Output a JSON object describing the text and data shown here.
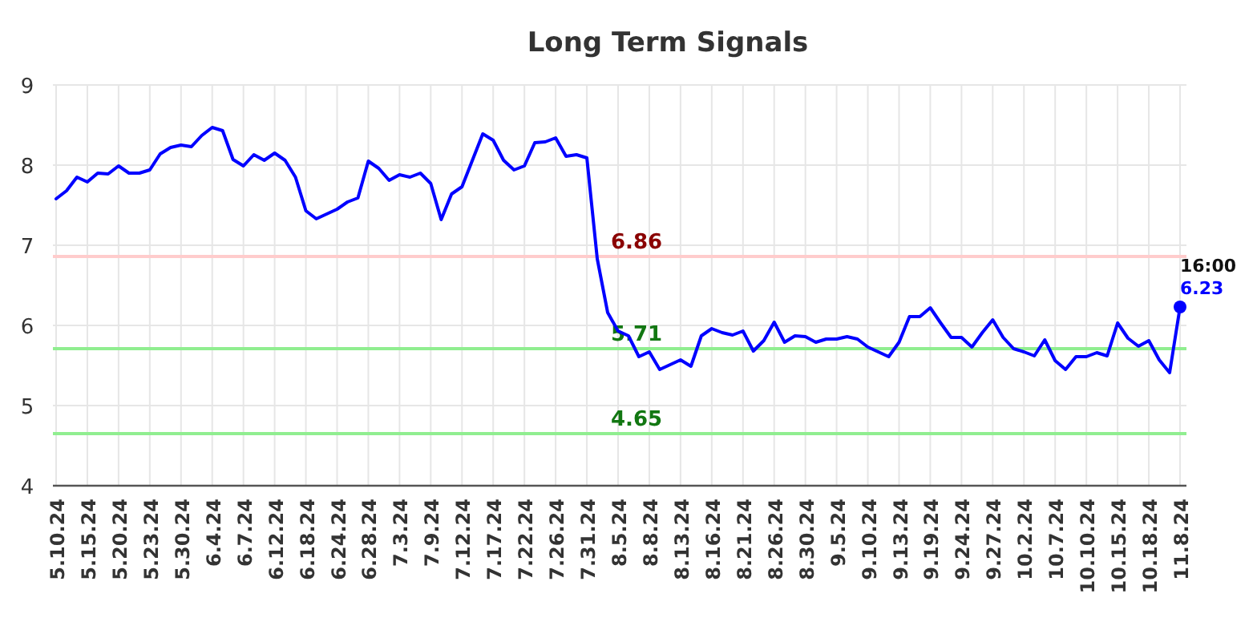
{
  "chart_data": {
    "type": "line",
    "title": "Long Term Signals",
    "categories": [
      "5.10.24",
      null,
      null,
      "5.15.24",
      null,
      null,
      "5.20.24",
      null,
      null,
      "5.23.24",
      null,
      null,
      "5.30.24",
      null,
      null,
      "6.4.24",
      null,
      null,
      "6.7.24",
      null,
      null,
      "6.12.24",
      null,
      null,
      "6.18.24",
      null,
      null,
      "6.24.24",
      null,
      null,
      "6.28.24",
      null,
      null,
      "7.3.24",
      null,
      null,
      "7.9.24",
      null,
      null,
      "7.12.24",
      null,
      null,
      "7.17.24",
      null,
      null,
      "7.22.24",
      null,
      null,
      "7.26.24",
      null,
      null,
      "7.31.24",
      null,
      null,
      "8.5.24",
      null,
      null,
      "8.8.24",
      null,
      null,
      "8.13.24",
      null,
      null,
      "8.16.24",
      null,
      null,
      "8.21.24",
      null,
      null,
      "8.26.24",
      null,
      null,
      "8.30.24",
      null,
      null,
      "9.5.24",
      null,
      null,
      "9.10.24",
      null,
      null,
      "9.13.24",
      null,
      null,
      "9.19.24",
      null,
      null,
      "9.24.24",
      null,
      null,
      "9.27.24",
      null,
      null,
      "10.2.24",
      null,
      null,
      "10.7.24",
      null,
      null,
      "10.10.24",
      null,
      null,
      "10.15.24",
      null,
      null,
      "10.18.24",
      null,
      null,
      "11.8.24"
    ],
    "series": [
      {
        "color": "#0000ff",
        "marker": "none",
        "values": [
          7.58,
          7.68,
          7.85,
          7.79,
          7.9,
          7.89,
          7.99,
          7.9,
          7.9,
          7.94,
          8.14,
          8.22,
          8.25,
          8.23,
          8.37,
          8.47,
          8.43,
          8.07,
          7.99,
          8.13,
          8.06,
          8.15,
          8.06,
          7.85,
          7.43,
          7.33,
          7.39,
          7.45,
          7.54,
          7.59,
          8.05,
          7.96,
          7.81,
          7.88,
          7.85,
          7.9,
          7.77,
          7.32,
          7.64,
          7.73,
          8.06,
          8.39,
          8.31,
          8.06,
          7.94,
          7.99,
          8.28,
          8.29,
          8.34,
          8.11,
          8.13,
          8.09,
          6.83,
          6.16,
          5.93,
          5.87,
          5.61,
          5.67,
          5.45,
          5.51,
          5.57,
          5.49,
          5.87,
          5.96,
          5.91,
          5.88,
          5.93,
          5.68,
          5.81,
          6.04,
          5.79,
          5.87,
          5.86,
          5.79,
          5.83,
          5.83,
          5.86,
          5.83,
          5.73,
          5.67,
          5.61,
          5.79,
          6.11,
          6.11,
          6.22,
          6.03,
          5.85,
          5.85,
          5.73,
          5.91,
          6.07,
          5.85,
          5.71,
          5.67,
          5.62,
          5.82,
          5.56,
          5.45,
          5.61,
          5.61,
          5.66,
          5.62,
          6.03,
          5.84,
          5.74,
          5.81,
          5.57,
          5.41,
          6.23
        ]
      },
      {
        "type": "scatter",
        "color": "#0000ff",
        "marker": "circle",
        "x": [
          "11.8.24"
        ],
        "values": [
          6.23
        ],
        "value_labels": [
          "6.23"
        ]
      }
    ],
    "ylim": [
      4,
      9
    ],
    "yticks": [
      4,
      5,
      6,
      7,
      8,
      9
    ],
    "grid": true,
    "ref_lines": [
      {
        "axis": "y",
        "value": 6.86,
        "label": "6.86",
        "color": "#ffcccc"
      },
      {
        "axis": "y",
        "value": 5.71,
        "label": "5.71",
        "color": "#90ee90"
      },
      {
        "axis": "y",
        "value": 4.65,
        "label": "4.65",
        "color": "#90ee90"
      }
    ],
    "annotations": [
      {
        "text": "16:00",
        "x": "11.8.24",
        "y": 6.23
      }
    ]
  }
}
